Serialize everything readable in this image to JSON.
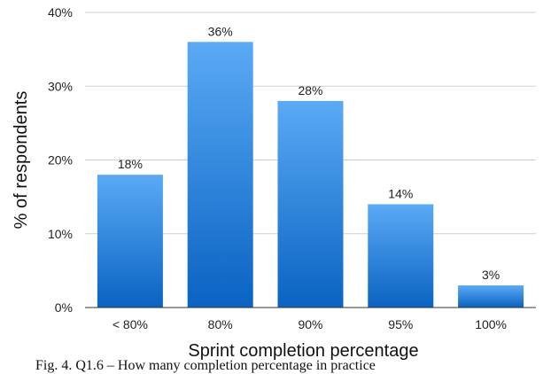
{
  "chart_data": {
    "type": "bar",
    "categories": [
      "< 80%",
      "80%",
      "90%",
      "95%",
      "100%"
    ],
    "values": [
      18,
      36,
      28,
      14,
      3
    ],
    "data_labels": [
      "18%",
      "36%",
      "28%",
      "14%",
      "3%"
    ],
    "title": "",
    "xlabel": "Sprint completion percentage",
    "ylabel": "% of respondents",
    "ylim": [
      0,
      40
    ],
    "yticks": [
      0,
      10,
      20,
      30,
      40
    ],
    "ytick_labels": [
      "0%",
      "10%",
      "20%",
      "30%",
      "40%"
    ],
    "grid": true,
    "bar_color_top": "#5aaaf5",
    "bar_color_bottom": "#0a63c2",
    "grid_color": "#d0d0d0"
  },
  "caption": "Fig. 4.  Q1.6 – How many completion percentage in practice"
}
